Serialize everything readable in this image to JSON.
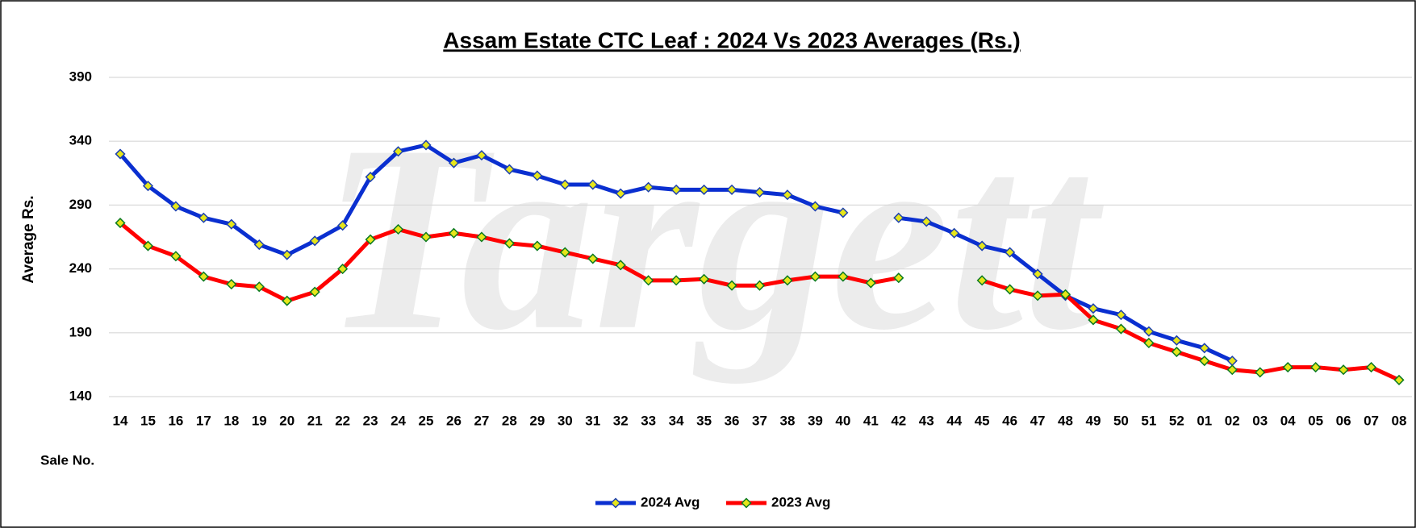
{
  "chart_data": {
    "type": "line",
    "title": "Assam Estate CTC Leaf : 2024 Vs 2023 Averages (Rs.)",
    "watermark": "Targett",
    "y_label": "Average Rs.",
    "x_label": "Sale No.",
    "categories": [
      "14",
      "15",
      "16",
      "17",
      "18",
      "19",
      "20",
      "21",
      "22",
      "23",
      "24",
      "25",
      "26",
      "27",
      "28",
      "29",
      "30",
      "31",
      "32",
      "33",
      "34",
      "35",
      "36",
      "37",
      "38",
      "39",
      "40",
      "41",
      "42",
      "43",
      "44",
      "45",
      "46",
      "47",
      "48",
      "49",
      "50",
      "51",
      "52",
      "01",
      "02",
      "03",
      "04",
      "05",
      "06",
      "07",
      "08"
    ],
    "series": [
      {
        "name": "2024 Avg",
        "color": "#0a2fd0",
        "values": [
          330,
          305,
          289,
          280,
          275,
          259,
          251,
          262,
          274,
          312,
          332,
          337,
          323,
          329,
          318,
          313,
          306,
          306,
          299,
          304,
          302,
          302,
          302,
          300,
          298,
          289,
          284,
          null,
          280,
          277,
          268,
          258,
          253,
          236,
          219,
          209,
          204,
          191,
          184,
          178,
          168,
          null,
          null,
          null,
          null,
          null,
          null
        ]
      },
      {
        "name": "2023 Avg",
        "color": "#ff0000",
        "values": [
          276,
          258,
          250,
          234,
          228,
          226,
          215,
          222,
          240,
          263,
          271,
          265,
          268,
          265,
          260,
          258,
          253,
          248,
          243,
          231,
          231,
          232,
          227,
          227,
          231,
          234,
          234,
          229,
          233,
          null,
          null,
          231,
          224,
          219,
          220,
          200,
          193,
          182,
          175,
          168,
          161,
          159,
          163,
          163,
          161,
          163,
          153
        ]
      }
    ],
    "ylim": [
      140,
      390
    ],
    "yticks": [
      140,
      190,
      240,
      290,
      340,
      390
    ],
    "grid": true,
    "legend": "bottom"
  }
}
